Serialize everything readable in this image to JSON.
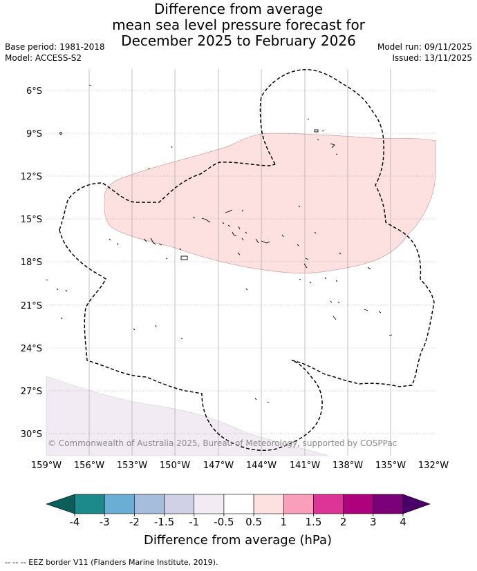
{
  "title": {
    "line1": "Difference from average",
    "line2": "mean sea level pressure forecast for",
    "line3": "December 2025 to February 2026"
  },
  "meta": {
    "base_period": "Base period: 1981-2018",
    "model": "Model: ACCESS-S2",
    "model_run": "Model run: 09/11/2025",
    "issued": "Issued: 13/11/2025"
  },
  "axes": {
    "lat_labels": [
      "6°S",
      "9°S",
      "12°S",
      "15°S",
      "18°S",
      "21°S",
      "24°S",
      "27°S",
      "30°S"
    ],
    "lon_labels": [
      "159°W",
      "156°W",
      "153°W",
      "150°W",
      "147°W",
      "144°W",
      "141°W",
      "138°W",
      "135°W",
      "132°W"
    ]
  },
  "copyright": "© Commonwealth of Australia 2025, Bureau of Meteorology, supported by COSPPac",
  "colorbar": {
    "title": "Difference from average (hPa)",
    "tick_labels": [
      "-4",
      "-3",
      "-2",
      "-1.5",
      "-1",
      "-0.5",
      "0.5",
      "1",
      "1.5",
      "2",
      "3",
      "4"
    ],
    "colors": [
      "#1c8a8a",
      "#6aaed6",
      "#a6bddb",
      "#d0d1e6",
      "#f2ebf4",
      "#ffffff",
      "#fde0e0",
      "#f99fbc",
      "#dd3497",
      "#ae017e",
      "#7a0177"
    ],
    "under_color": "#0b5e5a",
    "over_color": "#49006a"
  },
  "legend": {
    "eez": "-- -- -- EEZ border V11 (Flanders Marine Institute, 2019)."
  },
  "colors": {
    "positive_anomaly": "#fde0e0",
    "negative_anomaly": "#f2ebf4",
    "grid": "#999999"
  }
}
